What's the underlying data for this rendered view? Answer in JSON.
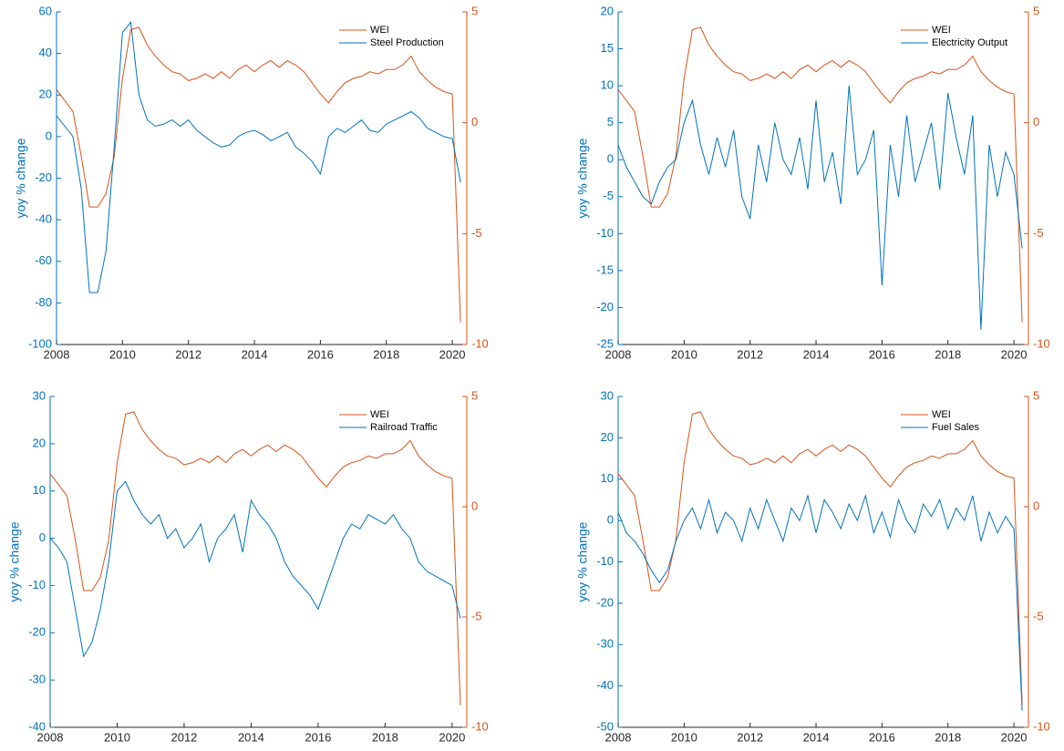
{
  "chart_data": [
    {
      "type": "line",
      "ylabel": "yoy % change",
      "legend": "northeast",
      "xlim": [
        2008,
        2020.44
      ],
      "xticks": [
        2008,
        2010,
        2012,
        2014,
        2016,
        2018,
        2020
      ],
      "ylim": [
        -100,
        60
      ],
      "yticks": [
        -100,
        -80,
        -60,
        -40,
        -20,
        0,
        20,
        40,
        60
      ],
      "y2lim": [
        -10,
        5
      ],
      "y2ticks": [
        -10,
        -5,
        0,
        5
      ],
      "x": [
        2008,
        2008.25,
        2008.5,
        2008.75,
        2009,
        2009.25,
        2009.5,
        2009.75,
        2010,
        2010.25,
        2010.5,
        2010.75,
        2011,
        2011.25,
        2011.5,
        2011.75,
        2012,
        2012.25,
        2012.5,
        2012.75,
        2013,
        2013.25,
        2013.5,
        2013.75,
        2014,
        2014.25,
        2014.5,
        2014.75,
        2015,
        2015.25,
        2015.5,
        2015.75,
        2016,
        2016.25,
        2016.5,
        2016.75,
        2017,
        2017.25,
        2017.5,
        2017.75,
        2018,
        2018.25,
        2018.5,
        2018.75,
        2019,
        2019.25,
        2019.5,
        2019.75,
        2020,
        2020.25
      ],
      "series": [
        {
          "name": "WEI",
          "color": "#d95319",
          "axis": "y2",
          "values": [
            1.5,
            1.0,
            0.5,
            -1.5,
            -3.8,
            -3.8,
            -3.2,
            -1.5,
            2.0,
            4.2,
            4.3,
            3.5,
            3.0,
            2.6,
            2.3,
            2.2,
            1.9,
            2.0,
            2.2,
            2.0,
            2.3,
            2.0,
            2.4,
            2.6,
            2.3,
            2.6,
            2.8,
            2.5,
            2.8,
            2.6,
            2.3,
            1.8,
            1.3,
            0.9,
            1.4,
            1.8,
            2.0,
            2.1,
            2.3,
            2.2,
            2.4,
            2.4,
            2.6,
            3.0,
            2.3,
            1.9,
            1.6,
            1.4,
            1.3,
            -9.0
          ]
        },
        {
          "name": "Steel Production",
          "color": "#0072bd",
          "values": [
            10,
            5,
            0,
            -25,
            -75,
            -75,
            -55,
            -5,
            50,
            55,
            20,
            8,
            5,
            6,
            8,
            5,
            8,
            3,
            0,
            -3,
            -5,
            -4,
            0,
            2,
            3,
            1,
            -2,
            0,
            2,
            -5,
            -8,
            -12,
            -18,
            0,
            4,
            2,
            5,
            8,
            3,
            2,
            6,
            8,
            10,
            12,
            9,
            4,
            2,
            0,
            -1,
            -22
          ]
        }
      ]
    },
    {
      "type": "line",
      "ylabel": "yoy % change",
      "legend": "northeast",
      "xlim": [
        2008,
        2020.44
      ],
      "xticks": [
        2008,
        2010,
        2012,
        2014,
        2016,
        2018,
        2020
      ],
      "ylim": [
        -25,
        20
      ],
      "yticks": [
        -25,
        -20,
        -15,
        -10,
        -5,
        0,
        5,
        10,
        15,
        20
      ],
      "y2lim": [
        -10,
        5
      ],
      "y2ticks": [
        -10,
        -5,
        0,
        5
      ],
      "x": [
        2008,
        2008.25,
        2008.5,
        2008.75,
        2009,
        2009.25,
        2009.5,
        2009.75,
        2010,
        2010.25,
        2010.5,
        2010.75,
        2011,
        2011.25,
        2011.5,
        2011.75,
        2012,
        2012.25,
        2012.5,
        2012.75,
        2013,
        2013.25,
        2013.5,
        2013.75,
        2014,
        2014.25,
        2014.5,
        2014.75,
        2015,
        2015.25,
        2015.5,
        2015.75,
        2016,
        2016.25,
        2016.5,
        2016.75,
        2017,
        2017.25,
        2017.5,
        2017.75,
        2018,
        2018.25,
        2018.5,
        2018.75,
        2019,
        2019.25,
        2019.5,
        2019.75,
        2020,
        2020.25
      ],
      "series": [
        {
          "name": "WEI",
          "color": "#d95319",
          "axis": "y2",
          "values": [
            1.5,
            1.0,
            0.5,
            -1.5,
            -3.8,
            -3.8,
            -3.2,
            -1.5,
            2.0,
            4.2,
            4.3,
            3.5,
            3.0,
            2.6,
            2.3,
            2.2,
            1.9,
            2.0,
            2.2,
            2.0,
            2.3,
            2.0,
            2.4,
            2.6,
            2.3,
            2.6,
            2.8,
            2.5,
            2.8,
            2.6,
            2.3,
            1.8,
            1.3,
            0.9,
            1.4,
            1.8,
            2.0,
            2.1,
            2.3,
            2.2,
            2.4,
            2.4,
            2.6,
            3.0,
            2.3,
            1.9,
            1.6,
            1.4,
            1.3,
            -9.0
          ]
        },
        {
          "name": "Electricity Output",
          "color": "#0072bd",
          "values": [
            2,
            -1,
            -3,
            -5,
            -6,
            -3,
            -1,
            0,
            5,
            8,
            2,
            -2,
            3,
            -1,
            4,
            -5,
            -8,
            2,
            -3,
            5,
            0,
            -2,
            3,
            -4,
            8,
            -3,
            1,
            -6,
            10,
            -2,
            0,
            4,
            -17,
            2,
            -5,
            6,
            -3,
            1,
            5,
            -4,
            9,
            3,
            -2,
            6,
            -23,
            2,
            -5,
            1,
            -2,
            -12
          ]
        }
      ]
    },
    {
      "type": "line",
      "ylabel": "yoy % change",
      "legend": "northeast",
      "xlim": [
        2008,
        2020.44
      ],
      "xticks": [
        2008,
        2010,
        2012,
        2014,
        2016,
        2018,
        2020
      ],
      "ylim": [
        -40,
        30
      ],
      "yticks": [
        -40,
        -30,
        -20,
        -10,
        0,
        10,
        20,
        30
      ],
      "y2lim": [
        -10,
        5
      ],
      "y2ticks": [
        -10,
        -5,
        0,
        5
      ],
      "x": [
        2008,
        2008.25,
        2008.5,
        2008.75,
        2009,
        2009.25,
        2009.5,
        2009.75,
        2010,
        2010.25,
        2010.5,
        2010.75,
        2011,
        2011.25,
        2011.5,
        2011.75,
        2012,
        2012.25,
        2012.5,
        2012.75,
        2013,
        2013.25,
        2013.5,
        2013.75,
        2014,
        2014.25,
        2014.5,
        2014.75,
        2015,
        2015.25,
        2015.5,
        2015.75,
        2016,
        2016.25,
        2016.5,
        2016.75,
        2017,
        2017.25,
        2017.5,
        2017.75,
        2018,
        2018.25,
        2018.5,
        2018.75,
        2019,
        2019.25,
        2019.5,
        2019.75,
        2020,
        2020.25
      ],
      "series": [
        {
          "name": "WEI",
          "color": "#d95319",
          "axis": "y2",
          "values": [
            1.5,
            1.0,
            0.5,
            -1.5,
            -3.8,
            -3.8,
            -3.2,
            -1.5,
            2.0,
            4.2,
            4.3,
            3.5,
            3.0,
            2.6,
            2.3,
            2.2,
            1.9,
            2.0,
            2.2,
            2.0,
            2.3,
            2.0,
            2.4,
            2.6,
            2.3,
            2.6,
            2.8,
            2.5,
            2.8,
            2.6,
            2.3,
            1.8,
            1.3,
            0.9,
            1.4,
            1.8,
            2.0,
            2.1,
            2.3,
            2.2,
            2.4,
            2.4,
            2.6,
            3.0,
            2.3,
            1.9,
            1.6,
            1.4,
            1.3,
            -9.0
          ]
        },
        {
          "name": "Railroad Traffic",
          "color": "#0072bd",
          "values": [
            0,
            -2,
            -5,
            -15,
            -25,
            -22,
            -15,
            -5,
            10,
            12,
            8,
            5,
            3,
            5,
            0,
            2,
            -2,
            0,
            3,
            -5,
            0,
            2,
            5,
            -3,
            8,
            5,
            3,
            0,
            -5,
            -8,
            -10,
            -12,
            -15,
            -10,
            -5,
            0,
            3,
            2,
            5,
            4,
            3,
            5,
            2,
            0,
            -5,
            -7,
            -8,
            -9,
            -10,
            -17
          ]
        }
      ]
    },
    {
      "type": "line",
      "ylabel": "yoy % change",
      "legend": "northeast",
      "xlim": [
        2008,
        2020.44
      ],
      "xticks": [
        2008,
        2010,
        2012,
        2014,
        2016,
        2018,
        2020
      ],
      "ylim": [
        -50,
        30
      ],
      "yticks": [
        -50,
        -40,
        -30,
        -20,
        -10,
        0,
        10,
        20,
        30
      ],
      "y2lim": [
        -10,
        5
      ],
      "y2ticks": [
        -10,
        -5,
        0,
        5
      ],
      "x": [
        2008,
        2008.25,
        2008.5,
        2008.75,
        2009,
        2009.25,
        2009.5,
        2009.75,
        2010,
        2010.25,
        2010.5,
        2010.75,
        2011,
        2011.25,
        2011.5,
        2011.75,
        2012,
        2012.25,
        2012.5,
        2012.75,
        2013,
        2013.25,
        2013.5,
        2013.75,
        2014,
        2014.25,
        2014.5,
        2014.75,
        2015,
        2015.25,
        2015.5,
        2015.75,
        2016,
        2016.25,
        2016.5,
        2016.75,
        2017,
        2017.25,
        2017.5,
        2017.75,
        2018,
        2018.25,
        2018.5,
        2018.75,
        2019,
        2019.25,
        2019.5,
        2019.75,
        2020,
        2020.25
      ],
      "series": [
        {
          "name": "WEI",
          "color": "#d95319",
          "axis": "y2",
          "values": [
            1.5,
            1.0,
            0.5,
            -1.5,
            -3.8,
            -3.8,
            -3.2,
            -1.5,
            2.0,
            4.2,
            4.3,
            3.5,
            3.0,
            2.6,
            2.3,
            2.2,
            1.9,
            2.0,
            2.2,
            2.0,
            2.3,
            2.0,
            2.4,
            2.6,
            2.3,
            2.6,
            2.8,
            2.5,
            2.8,
            2.6,
            2.3,
            1.8,
            1.3,
            0.9,
            1.4,
            1.8,
            2.0,
            2.1,
            2.3,
            2.2,
            2.4,
            2.4,
            2.6,
            3.0,
            2.3,
            1.9,
            1.6,
            1.4,
            1.3,
            -9.0
          ]
        },
        {
          "name": "Fuel Sales",
          "color": "#0072bd",
          "values": [
            2,
            -3,
            -5,
            -8,
            -12,
            -15,
            -12,
            -5,
            0,
            3,
            -2,
            5,
            -3,
            2,
            0,
            -5,
            3,
            -2,
            5,
            0,
            -5,
            3,
            0,
            6,
            -3,
            5,
            2,
            -2,
            4,
            0,
            6,
            -3,
            2,
            -4,
            5,
            0,
            -3,
            4,
            1,
            5,
            -2,
            3,
            0,
            6,
            -5,
            2,
            -3,
            1,
            -2,
            -46
          ]
        }
      ]
    }
  ]
}
